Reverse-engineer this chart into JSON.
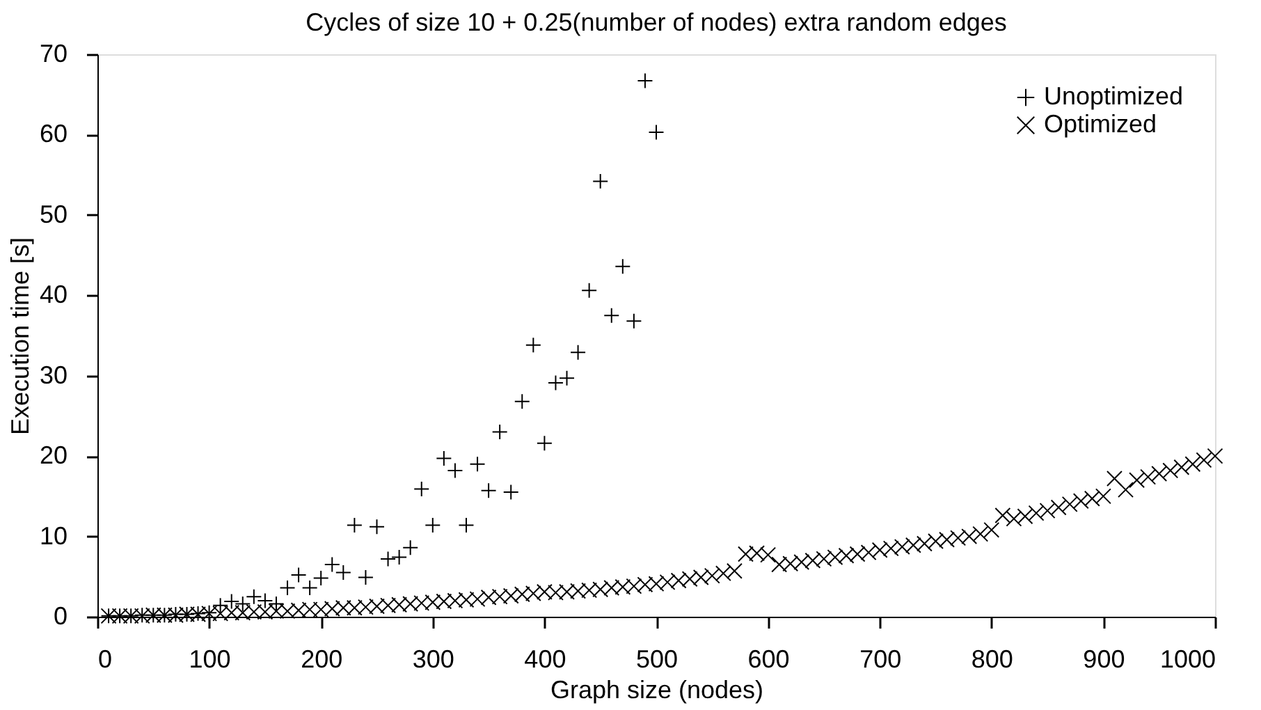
{
  "chart_data": {
    "type": "scatter",
    "title": "Cycles of size 10 + 0.25(number of nodes) extra random edges",
    "xlabel": "Graph size (nodes)",
    "ylabel": "Execution time [s]",
    "xlim": [
      0,
      1000
    ],
    "xticks": [
      0,
      100,
      200,
      300,
      400,
      500,
      600,
      700,
      800,
      900,
      1000
    ],
    "ylim": [
      0,
      70
    ],
    "yticks": [
      0,
      10,
      20,
      30,
      40,
      50,
      60,
      70
    ],
    "grid": false,
    "legend": "top right",
    "marker": "cross",
    "series": [
      {
        "name": "Unoptimized",
        "color": "#000000",
        "x": [
          10,
          20,
          30,
          40,
          50,
          60,
          70,
          80,
          90,
          100,
          110,
          120,
          130,
          140,
          150,
          160,
          170,
          180,
          190,
          200,
          210,
          220,
          230,
          240,
          250,
          260,
          270,
          280,
          290,
          300,
          310,
          320,
          330,
          340,
          350,
          360,
          370,
          380,
          390,
          400,
          410,
          420,
          430,
          440,
          450,
          460,
          470,
          480,
          490,
          500
        ],
        "values": [
          0.1,
          0.1,
          0.1,
          0.2,
          0.2,
          0.2,
          0.3,
          0.3,
          0.4,
          0.5,
          1.4,
          1.9,
          1.6,
          2.5,
          2.0,
          1.6,
          3.6,
          5.2,
          3.6,
          4.8,
          6.5,
          5.5,
          11.4,
          4.9,
          11.2,
          7.2,
          7.4,
          8.6,
          15.9,
          11.4,
          19.7,
          18.2,
          11.4,
          19.0,
          15.7,
          23.0,
          15.5,
          26.8,
          33.8,
          21.6,
          29.1,
          29.7,
          32.9,
          40.6,
          54.2,
          37.5,
          43.6,
          36.8,
          66.7,
          60.3
        ]
      },
      {
        "name": "Optimized",
        "color": "#000000",
        "x": [
          10,
          20,
          30,
          40,
          50,
          60,
          70,
          80,
          90,
          100,
          110,
          120,
          130,
          140,
          150,
          160,
          170,
          180,
          190,
          200,
          210,
          220,
          230,
          240,
          250,
          260,
          270,
          280,
          290,
          300,
          310,
          320,
          330,
          340,
          350,
          360,
          370,
          380,
          390,
          400,
          410,
          420,
          430,
          440,
          450,
          460,
          470,
          480,
          490,
          500,
          510,
          520,
          530,
          540,
          550,
          560,
          570,
          580,
          590,
          600,
          610,
          620,
          630,
          640,
          650,
          660,
          670,
          680,
          690,
          700,
          710,
          720,
          730,
          740,
          750,
          760,
          770,
          780,
          790,
          800,
          810,
          820,
          830,
          840,
          850,
          860,
          870,
          880,
          890,
          900,
          910,
          920,
          930,
          940,
          950,
          960,
          970,
          980,
          990,
          1000
        ],
        "values": [
          0.1,
          0.1,
          0.1,
          0.1,
          0.2,
          0.2,
          0.2,
          0.3,
          0.3,
          0.4,
          0.4,
          0.5,
          0.5,
          0.6,
          0.6,
          0.7,
          0.7,
          0.8,
          0.9,
          0.9,
          1.0,
          1.1,
          1.1,
          1.2,
          1.3,
          1.4,
          1.5,
          1.6,
          1.7,
          1.8,
          1.9,
          2.0,
          2.1,
          2.2,
          2.4,
          2.5,
          2.6,
          2.8,
          2.9,
          3.1,
          3.0,
          3.1,
          3.2,
          3.3,
          3.4,
          3.6,
          3.7,
          3.8,
          4.0,
          4.1,
          4.3,
          4.5,
          4.7,
          4.9,
          5.1,
          5.4,
          5.7,
          7.8,
          7.9,
          7.7,
          6.5,
          6.6,
          6.8,
          7.0,
          7.2,
          7.4,
          7.6,
          7.8,
          8.0,
          8.3,
          8.5,
          8.7,
          8.9,
          9.1,
          9.4,
          9.6,
          9.8,
          10.0,
          10.3,
          10.8,
          12.6,
          12.2,
          12.5,
          12.9,
          13.2,
          13.6,
          14.0,
          14.4,
          14.7,
          15.0,
          17.2,
          15.8,
          17.0,
          17.4,
          17.8,
          18.2,
          18.6,
          19.0,
          19.5,
          20.0
        ]
      }
    ]
  }
}
